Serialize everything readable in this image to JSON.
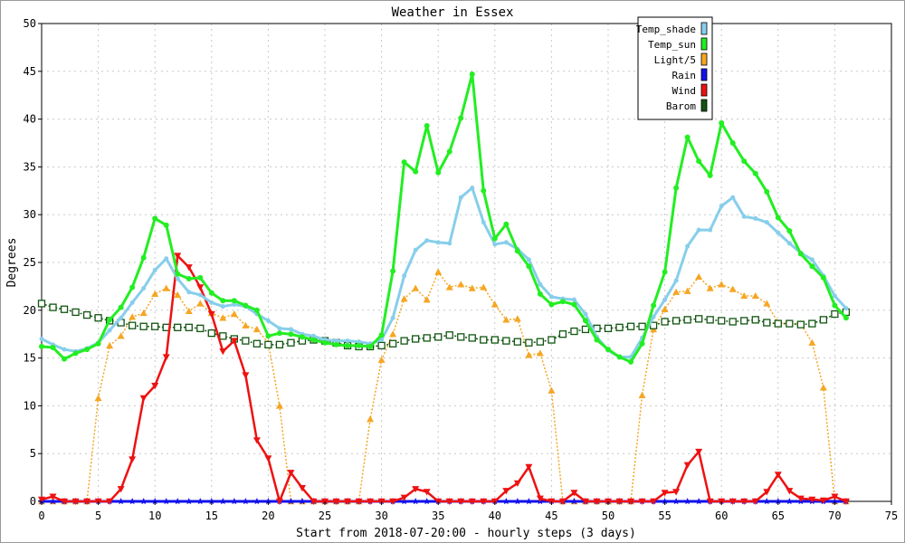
{
  "chart_data": {
    "type": "line",
    "title": "Weather in Essex",
    "xlabel": "Start from 2018-07-20:00 - hourly steps (3 days)",
    "ylabel": "Degrees",
    "xlim": [
      0,
      75
    ],
    "ylim": [
      0,
      50
    ],
    "xticks": [
      0,
      5,
      10,
      15,
      20,
      25,
      30,
      35,
      40,
      45,
      50,
      55,
      60,
      65,
      70,
      75
    ],
    "yticks": [
      0,
      5,
      10,
      15,
      20,
      25,
      30,
      35,
      40,
      45,
      50
    ],
    "grid": true,
    "legend_position": "top-right",
    "series": [
      {
        "name": "Temp_shade",
        "color": "#87ceeb",
        "values": [
          17,
          16.4,
          15.9,
          15.7,
          16,
          16.6,
          17.9,
          19.2,
          20.8,
          22.3,
          24.2,
          25.4,
          23.3,
          21.9,
          21.6,
          20.8,
          20.4,
          20.6,
          20.4,
          19.6,
          18.9,
          18.1,
          18,
          17.5,
          17.3,
          16.9,
          16.8,
          16.8,
          16.7,
          16.5,
          16.9,
          19.2,
          23.6,
          26.3,
          27.3,
          27.1,
          27,
          31.8,
          32.8,
          29.2,
          26.9,
          27.1,
          26.4,
          25.3,
          22.7,
          21.4,
          21.2,
          21.1,
          19.6,
          17.2,
          15.8,
          15.1,
          15.1,
          17.1,
          19.3,
          21.1,
          23.1,
          26.7,
          28.4,
          28.4,
          30.9,
          31.8,
          29.8,
          29.6,
          29.2,
          28.1,
          27,
          26,
          25.3,
          23.6,
          21.5,
          20.2
        ]
      },
      {
        "name": "Temp_sun",
        "color": "#22ee22",
        "values": [
          16.2,
          16.1,
          14.9,
          15.5,
          15.9,
          16.5,
          19,
          20.3,
          22.4,
          25.5,
          29.6,
          28.9,
          23.8,
          23.3,
          23.4,
          21.8,
          21,
          21,
          20.5,
          20,
          17.3,
          17.6,
          17.5,
          17.2,
          16.9,
          16.6,
          16.4,
          16.3,
          16.3,
          16.2,
          17.4,
          24.1,
          35.5,
          34.5,
          39.3,
          34.4,
          36.6,
          40.1,
          44.7,
          32.5,
          27.5,
          29,
          26.2,
          24.6,
          21.7,
          20.6,
          20.9,
          20.6,
          18.9,
          16.9,
          15.9,
          15.1,
          14.6,
          16.5,
          20.5,
          24,
          32.8,
          38.1,
          35.6,
          34.1,
          39.6,
          37.5,
          35.6,
          34.3,
          32.4,
          29.7,
          28.3,
          25.9,
          24.6,
          23.4,
          20.5,
          19.2
        ]
      },
      {
        "name": "Light/5",
        "color": "#f5a623",
        "values": [
          0,
          0,
          0,
          0,
          0,
          10.8,
          16.3,
          17.3,
          19.3,
          19.7,
          21.7,
          22.3,
          21.6,
          19.9,
          20.7,
          19.7,
          19.2,
          19.6,
          18.4,
          18,
          16.6,
          10,
          0,
          0,
          0,
          0,
          0,
          0,
          0,
          8.6,
          14.8,
          17.5,
          21.2,
          22.3,
          21.1,
          24,
          22.4,
          22.7,
          22.3,
          22.4,
          20.6,
          19,
          19.1,
          15.3,
          15.5,
          11.6,
          0,
          0,
          0,
          0,
          0,
          0,
          0,
          11.1,
          18,
          20.1,
          21.9,
          22,
          23.5,
          22.3,
          22.7,
          22.2,
          21.5,
          21.5,
          20.7,
          18.7,
          18.6,
          18.6,
          16.6,
          11.9,
          0,
          0
        ]
      },
      {
        "name": "Rain",
        "color": "#1111ee",
        "values": [
          0,
          0,
          0,
          0,
          0,
          0,
          0,
          0,
          0,
          0,
          0,
          0,
          0,
          0,
          0,
          0,
          0,
          0,
          0,
          0,
          0,
          0,
          0,
          0,
          0,
          0,
          0,
          0,
          0,
          0,
          0,
          0,
          0,
          0,
          0,
          0,
          0,
          0,
          0,
          0,
          0,
          0,
          0,
          0,
          0,
          0,
          0,
          0,
          0,
          0,
          0,
          0,
          0,
          0,
          0,
          0,
          0,
          0,
          0,
          0,
          0,
          0,
          0,
          0,
          0,
          0,
          0,
          0,
          0,
          0,
          0,
          0
        ]
      },
      {
        "name": "Wind",
        "color": "#ee1111",
        "values": [
          0.2,
          0.5,
          0,
          0,
          0,
          0,
          0,
          1.3,
          4.4,
          10.8,
          12.1,
          15.1,
          25.7,
          24.5,
          22.4,
          19.6,
          15.7,
          16.8,
          13.2,
          6.4,
          4.5,
          0,
          3,
          1.4,
          0,
          0,
          0,
          0,
          0,
          0,
          0,
          0,
          0.4,
          1.3,
          1,
          0,
          0,
          0,
          0,
          0,
          0,
          1.1,
          1.9,
          3.6,
          0.3,
          0,
          0,
          0.9,
          0,
          0,
          0,
          0,
          0,
          0,
          0,
          0.9,
          1,
          3.8,
          5.2,
          0,
          0,
          0,
          0,
          0,
          1,
          2.8,
          1.1,
          0.3,
          0.2,
          0.1,
          0.5,
          0
        ]
      },
      {
        "name": "Barom",
        "color": "#115511",
        "values": [
          20.7,
          20.3,
          20.1,
          19.8,
          19.5,
          19.2,
          18.9,
          18.7,
          18.4,
          18.3,
          18.3,
          18.2,
          18.2,
          18.2,
          18.1,
          17.6,
          17.3,
          17,
          16.8,
          16.5,
          16.4,
          16.4,
          16.6,
          16.8,
          16.9,
          16.8,
          16.6,
          16.3,
          16.2,
          16.2,
          16.3,
          16.5,
          16.8,
          17,
          17.1,
          17.2,
          17.4,
          17.2,
          17.1,
          16.9,
          16.9,
          16.8,
          16.7,
          16.6,
          16.7,
          16.9,
          17.5,
          17.8,
          18,
          18.1,
          18.1,
          18.2,
          18.3,
          18.3,
          18.4,
          18.8,
          18.9,
          19,
          19.1,
          19,
          18.9,
          18.8,
          18.9,
          19,
          18.7,
          18.6,
          18.6,
          18.5,
          18.6,
          19,
          19.6,
          19.8
        ]
      }
    ]
  }
}
